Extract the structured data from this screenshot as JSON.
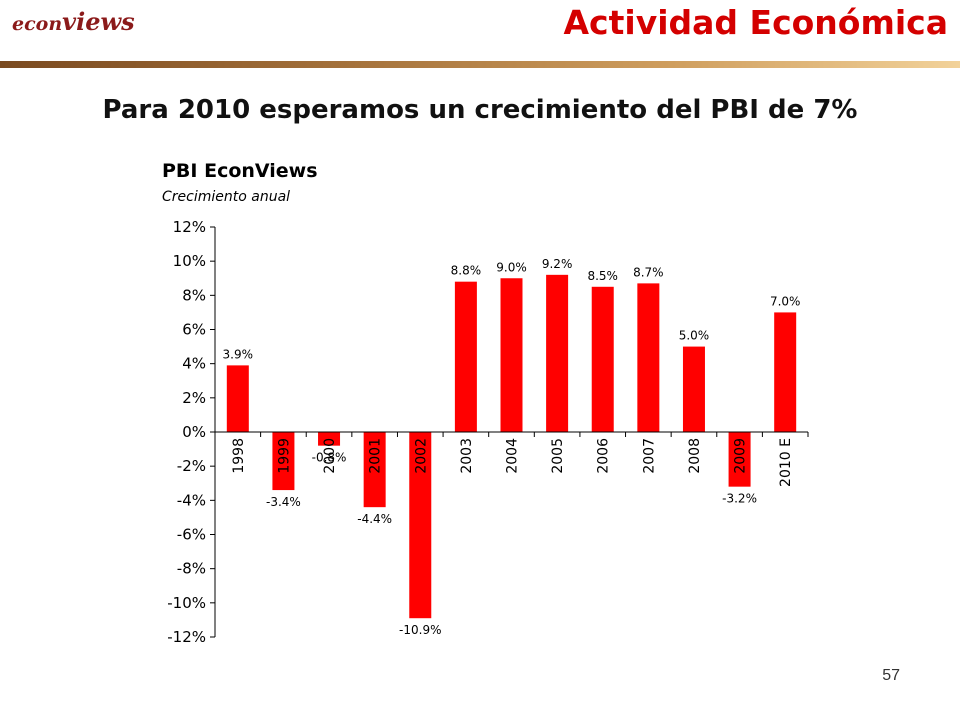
{
  "header": {
    "logo_prefix": "econ",
    "logo_suffix": "views",
    "title": "Actividad Económica"
  },
  "slide": {
    "subtitle": "Para 2010 esperamos un crecimiento del PBI de 7%",
    "page_number": "57"
  },
  "colors": {
    "title": "#d40000",
    "bar": "#ff0000",
    "logo": "#8b1a1a"
  },
  "chart_data": {
    "type": "bar",
    "title": "PBI EconViews",
    "subtitle": "Crecimiento anual",
    "categories": [
      "1998",
      "1999",
      "2000",
      "2001",
      "2002",
      "2003",
      "2004",
      "2005",
      "2006",
      "2007",
      "2008",
      "2009",
      "2010 E"
    ],
    "values": [
      3.9,
      -3.4,
      -0.8,
      -4.4,
      -10.9,
      8.8,
      9.0,
      9.2,
      8.5,
      8.7,
      5.0,
      -3.2,
      7.0
    ],
    "data_labels": [
      "3.9%",
      "-3.4%",
      "-0.8%",
      "-4.4%",
      "-10.9%",
      "8.8%",
      "9.0%",
      "9.2%",
      "8.5%",
      "8.7%",
      "5.0%",
      "-3.2%",
      "7.0%"
    ],
    "ylim": [
      -12,
      12
    ],
    "yticks": [
      12,
      10,
      8,
      6,
      4,
      2,
      0,
      -2,
      -4,
      -6,
      -8,
      -10,
      -12
    ],
    "ytick_labels": [
      "12%",
      "10%",
      "8%",
      "6%",
      "4%",
      "2%",
      "0%",
      "-2%",
      "-4%",
      "-6%",
      "-8%",
      "-10%",
      "-12%"
    ],
    "grid": false,
    "legend": "none"
  }
}
